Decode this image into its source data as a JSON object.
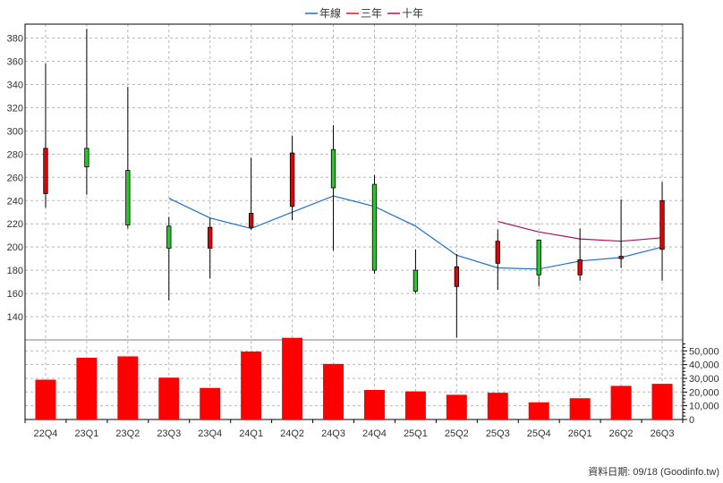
{
  "legend": [
    {
      "name": "年線",
      "color": "#1e6fcc"
    },
    {
      "name": "三年",
      "color": "#e0141e"
    },
    {
      "name": "十年",
      "color": "#b01060"
    }
  ],
  "source_note": "資料日期: 09/18  (Goodinfo.tw)",
  "chart_data": {
    "type": "candlestick+bar",
    "categories": [
      "22Q4",
      "23Q1",
      "23Q2",
      "23Q3",
      "23Q4",
      "24Q1",
      "24Q2",
      "24Q3",
      "24Q4",
      "25Q1",
      "25Q2",
      "25Q3",
      "25Q4",
      "26Q1",
      "26Q2",
      "26Q3"
    ],
    "price_axis": {
      "ylim": [
        120,
        392
      ],
      "ticks": [
        140,
        160,
        180,
        200,
        220,
        240,
        260,
        280,
        300,
        320,
        340,
        360,
        380
      ]
    },
    "volume_axis": {
      "ylim": [
        0,
        58000
      ],
      "ticks": [
        0,
        10000,
        20000,
        30000,
        40000,
        50000
      ],
      "tick_labels": [
        "0",
        "10,000",
        "20,000",
        "30,000",
        "40,000",
        "50,000"
      ]
    },
    "candles": [
      {
        "open": 246,
        "close": 285,
        "high": 358,
        "low": 234
      },
      {
        "open": 285,
        "close": 269,
        "high": 388,
        "low": 245
      },
      {
        "open": 266,
        "close": 219,
        "high": 338,
        "low": 216
      },
      {
        "open": 218,
        "close": 199,
        "high": 226,
        "low": 154
      },
      {
        "open": 199,
        "close": 217,
        "high": 225,
        "low": 173
      },
      {
        "open": 217,
        "close": 229,
        "high": 277,
        "low": 215
      },
      {
        "open": 235,
        "close": 281,
        "high": 296,
        "low": 223
      },
      {
        "open": 284,
        "close": 251,
        "high": 305,
        "low": 197
      },
      {
        "open": 254,
        "close": 180,
        "high": 262,
        "low": 177
      },
      {
        "open": 180,
        "close": 162,
        "high": 198,
        "low": 160
      },
      {
        "open": 166,
        "close": 183,
        "high": 194,
        "low": 122
      },
      {
        "open": 186,
        "close": 205,
        "high": 215,
        "low": 163
      },
      {
        "open": 206,
        "close": 176,
        "high": 206,
        "low": 166
      },
      {
        "open": 176,
        "close": 189,
        "high": 216,
        "low": 171
      },
      {
        "open": 190,
        "close": 192,
        "high": 241,
        "low": 182
      },
      {
        "open": 198,
        "close": 240,
        "high": 256,
        "low": 171
      }
    ],
    "series": [
      {
        "name": "年線",
        "color": "#1e6fcc",
        "values": [
          null,
          null,
          null,
          242,
          225,
          216,
          230,
          244,
          235,
          218,
          193,
          182,
          181,
          188,
          191,
          200
        ]
      },
      {
        "name": "三年",
        "color": "#e0141e",
        "values": [
          null,
          null,
          null,
          null,
          null,
          null,
          null,
          null,
          null,
          null,
          null,
          null,
          null,
          null,
          null,
          null
        ]
      },
      {
        "name": "十年",
        "color": "#b01060",
        "values": [
          null,
          null,
          null,
          null,
          null,
          null,
          null,
          null,
          null,
          null,
          null,
          222,
          213,
          207,
          205,
          208
        ]
      }
    ],
    "volume": [
      29000,
      45000,
      46000,
      30500,
      23000,
      49500,
      59500,
      40500,
      21500,
      20500,
      18000,
      19500,
      12500,
      15500,
      24500,
      26000
    ],
    "up_color": "#e60000",
    "down_color": "#22cc22",
    "volume_color": "#ff0000"
  }
}
